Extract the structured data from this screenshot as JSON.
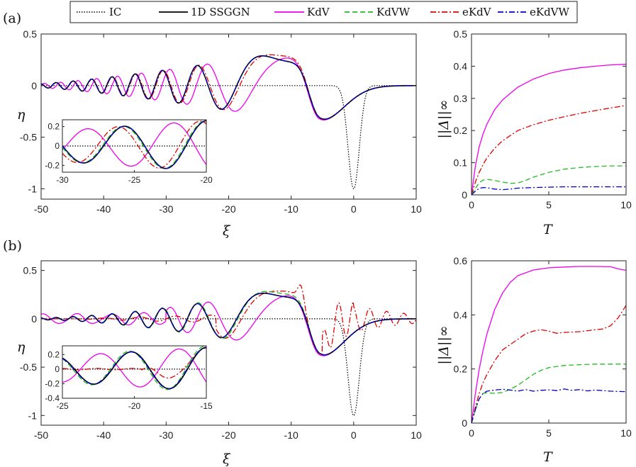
{
  "legend": {
    "entries": [
      {
        "key": "IC",
        "label": "IC",
        "color": "#000000",
        "dash": "1.5 2"
      },
      {
        "key": "ssggn",
        "label": "1D SSGGN",
        "color": "#000000",
        "dash": ""
      },
      {
        "key": "kdv",
        "label": "KdV",
        "color": "#ee00ee",
        "dash": ""
      },
      {
        "key": "kdvw",
        "label": "KdVW",
        "color": "#22bb22",
        "dash": "7 4"
      },
      {
        "key": "ekdv",
        "label": "eKdV",
        "color": "#e00000",
        "dash": "8 3 2 3"
      },
      {
        "key": "ekdvw",
        "label": "eKdVW",
        "color": "#0000cc",
        "dash": "8 3 2 3"
      }
    ]
  },
  "chart_data": [
    {
      "id": "a_main",
      "panel_label": "(a)",
      "type": "line",
      "xlabel": "ξ",
      "ylabel": "η",
      "xlim": [
        -50,
        10
      ],
      "ylim": [
        -1.1,
        0.5
      ],
      "xticks": [
        -50,
        -40,
        -30,
        -20,
        -10,
        0,
        10
      ],
      "xticklabels": [
        "-50",
        "-40",
        "-30",
        "-20",
        "-10",
        "0",
        "10"
      ],
      "yticks": [
        -1,
        -0.5,
        0,
        0.5
      ],
      "yticklabels": [
        "-1",
        "-0.5",
        "0",
        "0.5"
      ],
      "wave": {
        "k0": 0.48,
        "k1": 0.032,
        "amp_min": 0.02,
        "amp_max": 0.38,
        "amp_pow": 1.25,
        "trough": -0.35,
        "trough_x": -5.5,
        "ic_depth": -1.0,
        "ic_width": 0.9
      },
      "series": [
        {
          "key": "IC",
          "model": "ic"
        },
        {
          "key": "kdv",
          "model": "wave",
          "phase": 1.2,
          "kshift": -0.012,
          "amp_scale": 1.0,
          "noise": 0
        },
        {
          "key": "ekdv",
          "model": "wave",
          "phase": 0.3,
          "kshift": 0.004,
          "amp_scale": 1.0,
          "noise": 0
        },
        {
          "key": "kdvw",
          "model": "wave",
          "phase": 0.0,
          "kshift": 0.0,
          "amp_scale": 1.0,
          "noise": 0
        },
        {
          "key": "ssggn",
          "model": "wave",
          "phase": 0.0,
          "kshift": 0.0,
          "amp_scale": 1.0,
          "noise": 0
        },
        {
          "key": "ekdvw",
          "model": "wave",
          "phase": 0.0,
          "kshift": 0.0,
          "amp_scale": 1.0,
          "noise": 0
        }
      ]
    },
    {
      "id": "a_inset",
      "type": "line",
      "xlim": [
        -30,
        -20
      ],
      "ylim": [
        -0.27,
        0.27
      ],
      "xticks": [
        -30,
        -25,
        -20
      ],
      "xticklabels": [
        "-30",
        "-25",
        "-20"
      ],
      "yticks": [
        -0.2,
        0,
        0.2
      ],
      "yticklabels": [
        "-0.2",
        "0",
        "0.2"
      ],
      "wave": {
        "k0": 1.1,
        "k1": 0.0,
        "amp_min": 0.16,
        "amp_max": 0.26,
        "amp_pow": 1.0,
        "trough": 0,
        "trough_x": 0,
        "ic_depth": 0,
        "ic_width": 1
      },
      "series": [
        {
          "key": "IC",
          "model": "zero"
        },
        {
          "key": "kdv",
          "model": "wave",
          "phase": 2.4,
          "kshift": -0.05,
          "amp_scale": 1.0,
          "noise": 0
        },
        {
          "key": "ekdv",
          "model": "wave",
          "phase": 0.5,
          "kshift": 0.0,
          "amp_scale": 1.0,
          "noise": 0
        },
        {
          "key": "kdvw",
          "model": "wave",
          "phase": 0.1,
          "kshift": 0.0,
          "amp_scale": 1.0,
          "noise": 0
        },
        {
          "key": "ssggn",
          "model": "wave",
          "phase": 0.0,
          "kshift": 0.0,
          "amp_scale": 1.0,
          "noise": 0
        },
        {
          "key": "ekdvw",
          "model": "wave",
          "phase": 0.0,
          "kshift": 0.0,
          "amp_scale": 1.0,
          "noise": 0
        }
      ]
    },
    {
      "id": "a_err",
      "type": "line",
      "xlabel": "T",
      "ylabel": "||Δ||∞",
      "xlim": [
        0,
        10
      ],
      "ylim": [
        0,
        0.5
      ],
      "xticks": [
        0,
        5,
        10
      ],
      "xticklabels": [
        "0",
        "5",
        "10"
      ],
      "yticks": [
        0,
        0.1,
        0.2,
        0.3,
        0.4,
        0.5
      ],
      "yticklabels": [
        "0",
        "0.1",
        "0.2",
        "0.3",
        "0.4",
        "0.5"
      ],
      "series": [
        {
          "key": "kdv",
          "x": [
            0,
            0.25,
            0.5,
            0.75,
            1,
            1.5,
            2,
            3,
            4,
            5,
            6,
            7,
            8,
            9,
            10
          ],
          "y": [
            0,
            0.09,
            0.15,
            0.19,
            0.22,
            0.265,
            0.295,
            0.335,
            0.36,
            0.377,
            0.388,
            0.395,
            0.4,
            0.404,
            0.406
          ]
        },
        {
          "key": "ekdv",
          "x": [
            0,
            0.25,
            0.5,
            0.75,
            1,
            1.5,
            2,
            3,
            4,
            5,
            6,
            7,
            8,
            9,
            10
          ],
          "y": [
            0,
            0.04,
            0.07,
            0.095,
            0.115,
            0.145,
            0.168,
            0.2,
            0.218,
            0.232,
            0.243,
            0.253,
            0.262,
            0.27,
            0.278
          ]
        },
        {
          "key": "kdvw",
          "x": [
            0,
            0.25,
            0.5,
            0.75,
            1,
            1.5,
            2,
            2.5,
            3,
            3.5,
            4,
            5,
            6,
            7,
            8,
            9,
            10
          ],
          "y": [
            0,
            0.02,
            0.038,
            0.046,
            0.048,
            0.045,
            0.04,
            0.036,
            0.037,
            0.045,
            0.055,
            0.07,
            0.08,
            0.085,
            0.088,
            0.09,
            0.09
          ]
        },
        {
          "key": "ekdvw",
          "x": [
            0,
            0.25,
            0.5,
            0.75,
            1,
            1.5,
            2,
            2.5,
            3,
            4,
            5,
            6,
            7,
            8,
            9,
            10
          ],
          "y": [
            0,
            0.012,
            0.02,
            0.023,
            0.022,
            0.018,
            0.016,
            0.018,
            0.021,
            0.023,
            0.024,
            0.025,
            0.025,
            0.025,
            0.025,
            0.025
          ]
        }
      ]
    },
    {
      "id": "b_main",
      "panel_label": "(b)",
      "type": "line",
      "xlabel": "ξ",
      "ylabel": "η",
      "xlim": [
        -50,
        10
      ],
      "ylim": [
        -1.1,
        0.6
      ],
      "xticks": [
        -50,
        -40,
        -30,
        -20,
        -10,
        0,
        10
      ],
      "xticklabels": [
        "-50",
        "-40",
        "-30",
        "-20",
        "-10",
        "0",
        "10"
      ],
      "yticks": [
        -1,
        -0.5,
        0,
        0.5
      ],
      "yticklabels": [
        "-1",
        "-0.5",
        "0",
        "0.5"
      ],
      "wave": {
        "k0": 0.48,
        "k1": 0.032,
        "amp_min": 0.01,
        "amp_max": 0.38,
        "amp_pow": 1.6,
        "trough": -0.4,
        "trough_x": -5.5,
        "ic_depth": -1.0,
        "ic_width": 0.9
      },
      "series": [
        {
          "key": "IC",
          "model": "ic"
        },
        {
          "key": "kdv",
          "model": "kdv_b",
          "phase": 1.3,
          "kshift": -0.012,
          "amp_scale": 1.0,
          "noise": 0
        },
        {
          "key": "ekdv",
          "model": "ekdv_b",
          "phase": 0.4,
          "kshift": 0.0,
          "amp_scale": 1.0,
          "noise": 0
        },
        {
          "key": "kdvw",
          "model": "wave",
          "phase": 0.1,
          "kshift": 0.0,
          "amp_scale": 1.05,
          "noise": 0
        },
        {
          "key": "ssggn",
          "model": "wave",
          "phase": 0.0,
          "kshift": 0.0,
          "amp_scale": 1.0,
          "noise": 0
        },
        {
          "key": "ekdvw",
          "model": "wave",
          "phase": 0.0,
          "kshift": 0.0,
          "amp_scale": 1.0,
          "noise": 0
        }
      ]
    },
    {
      "id": "b_inset",
      "type": "line",
      "xlim": [
        -25,
        -15
      ],
      "ylim": [
        -0.4,
        0.32
      ],
      "xticks": [
        -25,
        -20,
        -15
      ],
      "xticklabels": [
        "-25",
        "-20",
        "-15"
      ],
      "yticks": [
        -0.4,
        -0.2,
        0,
        0.2
      ],
      "yticklabels": [
        "-0.4",
        "-0.2",
        "0",
        "0.2"
      ],
      "wave": {
        "k0": 1.2,
        "k1": 0.0,
        "amp_min": 0.18,
        "amp_max": 0.3,
        "amp_pow": 1.0,
        "trough": 0,
        "trough_x": 0,
        "ic_depth": 0,
        "ic_width": 1
      },
      "series": [
        {
          "key": "IC",
          "model": "zero"
        },
        {
          "key": "kdv",
          "model": "wave",
          "phase": 2.2,
          "kshift": -0.05,
          "amp_scale": 1.0,
          "noise": 0
        },
        {
          "key": "ekdv",
          "model": "ekdv_inset",
          "phase": 0.0,
          "kshift": 0.0,
          "amp_scale": 1.0,
          "noise": 0
        },
        {
          "key": "kdvw",
          "model": "wave",
          "phase": 0.15,
          "kshift": 0.0,
          "amp_scale": 1.05,
          "noise": 0
        },
        {
          "key": "ssggn",
          "model": "wave",
          "phase": 0.0,
          "kshift": 0.0,
          "amp_scale": 1.0,
          "noise": 0
        },
        {
          "key": "ekdvw",
          "model": "wave",
          "phase": 0.05,
          "kshift": 0.0,
          "amp_scale": 1.0,
          "noise": 0
        }
      ]
    },
    {
      "id": "b_err",
      "type": "line",
      "xlabel": "T",
      "ylabel": "||Δ||∞",
      "xlim": [
        0,
        10
      ],
      "ylim": [
        0,
        0.6
      ],
      "xticks": [
        0,
        5,
        10
      ],
      "xticklabels": [
        "0",
        "5",
        "10"
      ],
      "yticks": [
        0,
        0.2,
        0.4,
        0.6
      ],
      "yticklabels": [
        "0",
        "0.2",
        "0.4",
        "0.6"
      ],
      "series": [
        {
          "key": "kdv",
          "x": [
            0,
            0.25,
            0.5,
            0.75,
            1,
            1.5,
            2,
            2.5,
            3,
            4,
            5,
            6,
            7,
            8,
            9,
            9.5,
            10
          ],
          "y": [
            0,
            0.11,
            0.2,
            0.27,
            0.33,
            0.42,
            0.48,
            0.52,
            0.545,
            0.566,
            0.574,
            0.577,
            0.579,
            0.579,
            0.578,
            0.57,
            0.565
          ]
        },
        {
          "key": "ekdv",
          "x": [
            0,
            0.25,
            0.5,
            0.75,
            1,
            1.5,
            2,
            2.5,
            3,
            3.5,
            4,
            4.5,
            5,
            5.5,
            6,
            7,
            8,
            8.5,
            9,
            9.5,
            10
          ],
          "y": [
            0,
            0.06,
            0.11,
            0.15,
            0.18,
            0.23,
            0.27,
            0.29,
            0.31,
            0.33,
            0.34,
            0.345,
            0.34,
            0.332,
            0.335,
            0.338,
            0.345,
            0.348,
            0.36,
            0.39,
            0.435
          ]
        },
        {
          "key": "kdvw",
          "x": [
            0,
            0.25,
            0.5,
            0.75,
            1,
            1.5,
            2,
            2.5,
            3,
            3.5,
            4,
            4.5,
            5,
            6,
            7,
            8,
            9,
            10
          ],
          "y": [
            0,
            0.05,
            0.09,
            0.11,
            0.112,
            0.11,
            0.113,
            0.125,
            0.14,
            0.16,
            0.18,
            0.195,
            0.205,
            0.213,
            0.216,
            0.218,
            0.218,
            0.218
          ]
        },
        {
          "key": "ekdvw",
          "x": [
            0,
            0.25,
            0.5,
            0.75,
            1,
            1.5,
            2,
            2.5,
            3,
            3.5,
            4,
            4.5,
            5,
            5.5,
            6,
            6.5,
            7,
            7.5,
            8,
            9,
            10
          ],
          "y": [
            0,
            0.05,
            0.09,
            0.11,
            0.118,
            0.122,
            0.125,
            0.122,
            0.118,
            0.124,
            0.118,
            0.121,
            0.123,
            0.12,
            0.126,
            0.121,
            0.124,
            0.119,
            0.122,
            0.118,
            0.116
          ]
        }
      ]
    }
  ]
}
